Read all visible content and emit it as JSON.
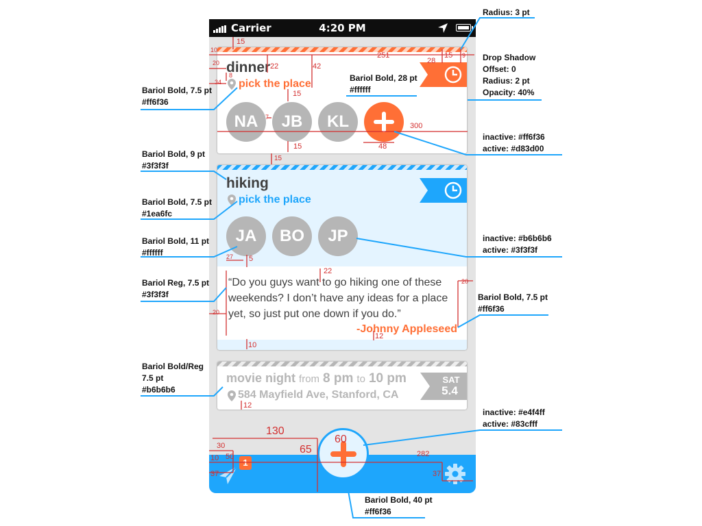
{
  "status_bar": {
    "carrier": "Carrier",
    "time": "4:20 PM"
  },
  "cards": {
    "dinner": {
      "title": "dinner",
      "place": "pick the place",
      "avatars": [
        "NA",
        "JB",
        "KL"
      ]
    },
    "hiking": {
      "title": "hiking",
      "place": "pick the place",
      "avatars": [
        "JA",
        "BO",
        "JP"
      ],
      "quote": "“Do you guys want to go hiking one of these weekends? I don’t have any ideas for a place yet, so just put one down if you do.”",
      "author": "-Johnny Appleseed"
    },
    "movie": {
      "title": "movie night",
      "from": "from",
      "start": "8 pm",
      "to": "to",
      "end": "10 pm",
      "address": "584 Mayfield Ave, Stanford, CA",
      "day": "SAT",
      "date": "5.4"
    }
  },
  "tab_bar": {
    "badge": "1"
  },
  "annotations": {
    "radius": "Radius: 3 pt",
    "drop_shadow": [
      "Drop Shadow",
      "Offset: 0",
      "Radius: 2 pt",
      "Opacity: 40%"
    ],
    "bariol_28": [
      "Bariol Bold, 28 pt",
      "#ffffff"
    ],
    "place_orange": [
      "Bariol Bold, 7.5 pt",
      "#ff6f36"
    ],
    "add_states": [
      "inactive: #ff6f36",
      "active: #d83d00"
    ],
    "title_font": [
      "Bariol Bold, 9 pt",
      "#3f3f3f"
    ],
    "place_blue": [
      "Bariol Bold, 7.5 pt",
      "#1ea6fc"
    ],
    "avatar_font": [
      "Bariol Bold, 11 pt",
      "#ffffff"
    ],
    "avatar_states": [
      "inactive: #b6b6b6",
      "active: #3f3f3f"
    ],
    "quote_font": [
      "Bariol Reg, 7.5 pt",
      "#3f3f3f"
    ],
    "author_font": [
      "Bariol Bold, 7.5 pt",
      "#ff6f36"
    ],
    "movie_font": [
      "Bariol Bold/Reg",
      "7.5 pt",
      "#b6b6b6"
    ],
    "fab_states": [
      "inactive: #e4f4ff",
      "active: #83cfff"
    ],
    "fab_font": [
      "Bariol Bold, 40 pt",
      "#ff6f36"
    ]
  },
  "dimensions": [
    "15",
    "10",
    "251",
    "15",
    "9",
    "20",
    "28",
    "22",
    "42",
    "8",
    "34",
    "15",
    "7",
    "300",
    "15",
    "48",
    "15",
    "27",
    "5",
    "22",
    "20",
    "20",
    "20",
    "10",
    "12",
    "12",
    "130",
    "60",
    "30",
    "65",
    "50",
    "10",
    "282",
    "37",
    "37"
  ],
  "colors": {
    "orange": "#ff6f36",
    "blue": "#1ea6fc",
    "gray": "#b6b6b6",
    "dark_text": "#3f3f3f",
    "light_blue": "#e4f4ff",
    "annotation_line": "#1ea6fc",
    "dimension_line": "#d32f2f"
  }
}
